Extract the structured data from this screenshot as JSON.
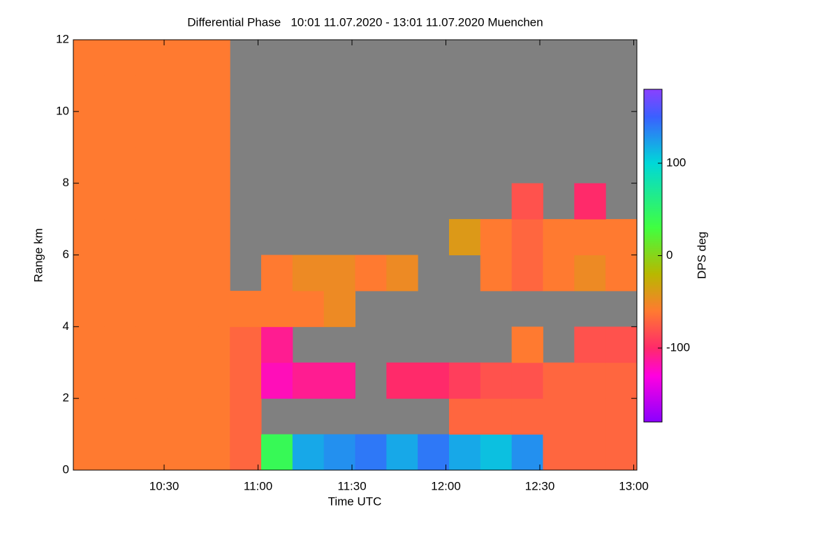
{
  "chart_data": {
    "type": "heatmap",
    "title": "Differential Phase   10:01 11.07.2020 - 13:01 11.07.2020 Muenchen",
    "x_label": "Time UTC",
    "y_label": "Range km",
    "colorbar_label": "DPS deg",
    "x_bins": [
      601,
      611,
      621,
      631,
      641,
      651,
      661,
      671,
      681,
      691,
      701,
      711,
      721,
      731,
      741,
      751,
      761,
      771,
      781
    ],
    "y_bins": [
      0,
      1,
      2,
      3,
      4,
      5,
      6,
      7,
      8,
      9,
      10,
      11,
      12
    ],
    "values": [
      [
        -60,
        -60,
        -60,
        -60,
        -60,
        -70,
        40,
        120,
        130,
        140,
        120,
        140,
        120,
        110,
        130,
        -70,
        -70,
        -70
      ],
      [
        -60,
        -60,
        -60,
        -60,
        -60,
        -70,
        null,
        null,
        null,
        null,
        null,
        null,
        -70,
        -70,
        -70,
        -70,
        -70,
        -70
      ],
      [
        -60,
        -60,
        -60,
        -60,
        -60,
        -70,
        -120,
        -110,
        -110,
        null,
        -100,
        -100,
        -90,
        -80,
        -80,
        -70,
        -70,
        -70
      ],
      [
        -60,
        -60,
        -60,
        -60,
        -60,
        -70,
        -110,
        null,
        null,
        null,
        null,
        null,
        null,
        null,
        -60,
        null,
        -80,
        -80
      ],
      [
        -60,
        -60,
        -60,
        -60,
        -60,
        -60,
        -60,
        -60,
        -50,
        null,
        null,
        null,
        null,
        null,
        null,
        null,
        null,
        null
      ],
      [
        -60,
        -60,
        -60,
        -60,
        -60,
        null,
        -60,
        -50,
        -50,
        -60,
        -50,
        null,
        null,
        -60,
        -70,
        -60,
        -50,
        -60
      ],
      [
        -60,
        -60,
        -60,
        -60,
        -60,
        null,
        null,
        null,
        null,
        null,
        null,
        null,
        -40,
        -60,
        -70,
        -60,
        -60,
        -60
      ],
      [
        -60,
        -60,
        -60,
        -60,
        -60,
        null,
        null,
        null,
        null,
        null,
        null,
        null,
        null,
        null,
        -80,
        null,
        -100,
        null
      ],
      [
        -60,
        -60,
        -60,
        -60,
        -60,
        null,
        null,
        null,
        null,
        null,
        null,
        null,
        null,
        null,
        null,
        null,
        null,
        null
      ],
      [
        -60,
        -60,
        -60,
        -60,
        -60,
        null,
        null,
        null,
        null,
        null,
        null,
        null,
        null,
        null,
        null,
        null,
        null,
        null
      ],
      [
        -60,
        -60,
        -60,
        -60,
        -60,
        null,
        null,
        null,
        null,
        null,
        null,
        null,
        null,
        null,
        null,
        null,
        null,
        null
      ],
      [
        -60,
        -60,
        -60,
        -60,
        -60,
        null,
        null,
        null,
        null,
        null,
        null,
        null,
        null,
        null,
        null,
        null,
        null,
        null
      ]
    ],
    "xlim": [
      601,
      781
    ],
    "xticks": [
      {
        "value": 630,
        "label": "10:30"
      },
      {
        "value": 660,
        "label": "11:00"
      },
      {
        "value": 690,
        "label": "11:30"
      },
      {
        "value": 720,
        "label": "12:00"
      },
      {
        "value": 750,
        "label": "12:30"
      },
      {
        "value": 780,
        "label": "13:00"
      }
    ],
    "ylim": [
      0,
      12
    ],
    "yticks": [
      0,
      2,
      4,
      6,
      8,
      10,
      12
    ],
    "zlim": [
      -180,
      180
    ],
    "zticks": [
      -100,
      0,
      100
    ],
    "no_data_color": "#808080",
    "colormap": [
      {
        "value": -180,
        "color": "#8a00ff"
      },
      {
        "value": -130,
        "color": "#ff00e0"
      },
      {
        "value": -100,
        "color": "#ff2a6a"
      },
      {
        "value": -60,
        "color": "#ff7a30"
      },
      {
        "value": -20,
        "color": "#b8b800"
      },
      {
        "value": 30,
        "color": "#40ff40"
      },
      {
        "value": 100,
        "color": "#00d8d8"
      },
      {
        "value": 150,
        "color": "#3a60ff"
      },
      {
        "value": 180,
        "color": "#8a40ff"
      }
    ]
  }
}
